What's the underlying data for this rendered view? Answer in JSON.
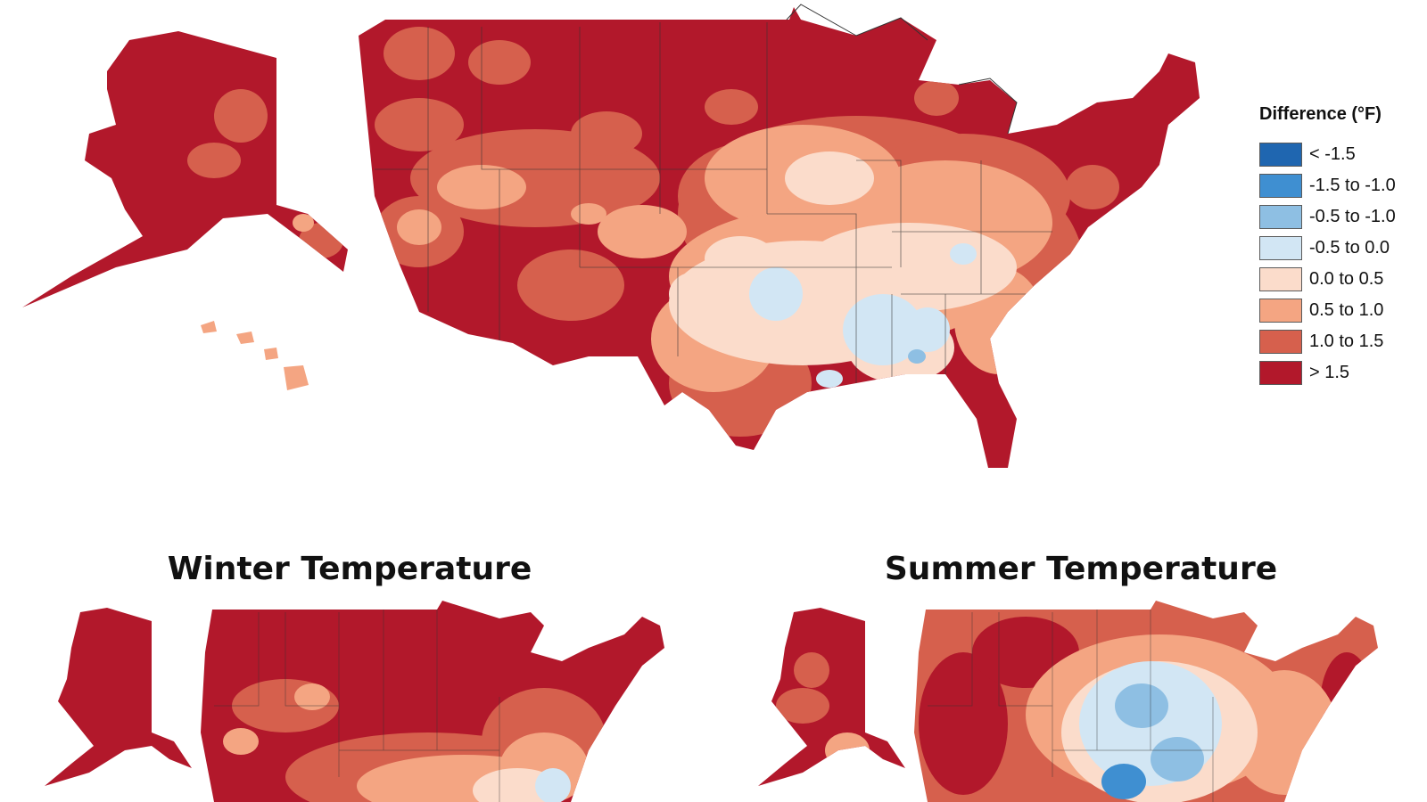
{
  "legend": {
    "title": "Difference (°F)",
    "items": [
      {
        "label": "< -1.5",
        "color": "#1f66b0"
      },
      {
        "label": "-1.5 to -1.0",
        "color": "#3f8fd1"
      },
      {
        "label": "-0.5 to -1.0",
        "color": "#8ebfe3"
      },
      {
        "label": "-0.5 to 0.0",
        "color": "#d2e6f4"
      },
      {
        "label": "0.0 to 0.5",
        "color": "#fbdccb"
      },
      {
        "label": "0.5 to 1.0",
        "color": "#f4a582"
      },
      {
        "label": "1.0 to 1.5",
        "color": "#d6604d"
      },
      {
        "label": "> 1.5",
        "color": "#b2182b"
      }
    ]
  },
  "panels": {
    "winter_title": "Winter Temperature",
    "summer_title": "Summer Temperature"
  }
}
